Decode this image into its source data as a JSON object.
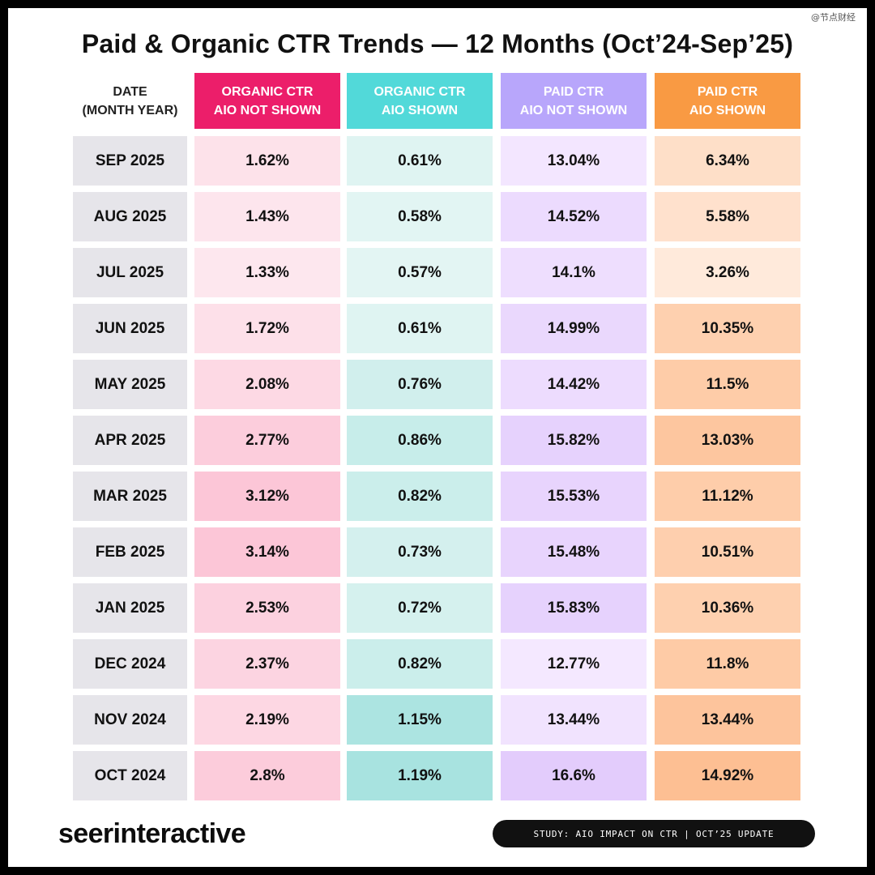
{
  "watermark": "@节点财经",
  "chart_data": {
    "type": "table",
    "title": "Paid & Organic CTR Trends — 12 Months (Oct’24-Sep’25)",
    "date_header": [
      "DATE",
      "(MONTH YEAR)"
    ],
    "columns": [
      {
        "key": "organic_not_shown",
        "header": [
          "ORGANIC CTR",
          "AIO NOT SHOWN"
        ],
        "header_color": "#ec1e6a",
        "cell_color": "#fde7ee",
        "cell_color_high": "#fcc6d7",
        "min": 1.33,
        "max": 3.14
      },
      {
        "key": "organic_shown",
        "header": [
          "ORGANIC CTR",
          "AIO SHOWN"
        ],
        "header_color": "#52d9d9",
        "cell_color": "#e3f5f3",
        "cell_color_high": "#a8e3e0",
        "min": 0.57,
        "max": 1.19
      },
      {
        "key": "paid_not_shown",
        "header": [
          "PAID CTR",
          "AIO NOT SHOWN"
        ],
        "header_color": "#b8a6fb",
        "cell_color": "#f4e8ff",
        "cell_color_high": "#e3ccfc",
        "min": 12.77,
        "max": 16.6
      },
      {
        "key": "paid_shown",
        "header": [
          "PAID CTR",
          "AIO SHOWN"
        ],
        "header_color": "#f99a43",
        "cell_color": "#ffeadb",
        "cell_color_high": "#fdbf93",
        "min": 3.26,
        "max": 14.92
      }
    ],
    "rows": [
      {
        "date": "SEP 2025",
        "values": [
          "1.62%",
          "0.61%",
          "13.04%",
          "6.34%"
        ],
        "numbers": [
          1.62,
          0.61,
          13.04,
          6.34
        ]
      },
      {
        "date": "AUG 2025",
        "values": [
          "1.43%",
          "0.58%",
          "14.52%",
          "5.58%"
        ],
        "numbers": [
          1.43,
          0.58,
          14.52,
          5.58
        ]
      },
      {
        "date": "JUL 2025",
        "values": [
          "1.33%",
          "0.57%",
          "14.1%",
          "3.26%"
        ],
        "numbers": [
          1.33,
          0.57,
          14.1,
          3.26
        ]
      },
      {
        "date": "JUN 2025",
        "values": [
          "1.72%",
          "0.61%",
          "14.99%",
          "10.35%"
        ],
        "numbers": [
          1.72,
          0.61,
          14.99,
          10.35
        ]
      },
      {
        "date": "MAY 2025",
        "values": [
          "2.08%",
          "0.76%",
          "14.42%",
          "11.5%"
        ],
        "numbers": [
          2.08,
          0.76,
          14.42,
          11.5
        ]
      },
      {
        "date": "APR 2025",
        "values": [
          "2.77%",
          "0.86%",
          "15.82%",
          "13.03%"
        ],
        "numbers": [
          2.77,
          0.86,
          15.82,
          13.03
        ]
      },
      {
        "date": "MAR 2025",
        "values": [
          "3.12%",
          "0.82%",
          "15.53%",
          "11.12%"
        ],
        "numbers": [
          3.12,
          0.82,
          15.53,
          11.12
        ]
      },
      {
        "date": "FEB 2025",
        "values": [
          "3.14%",
          "0.73%",
          "15.48%",
          "10.51%"
        ],
        "numbers": [
          3.14,
          0.73,
          15.48,
          10.51
        ]
      },
      {
        "date": "JAN 2025",
        "values": [
          "2.53%",
          "0.72%",
          "15.83%",
          "10.36%"
        ],
        "numbers": [
          2.53,
          0.72,
          15.83,
          10.36
        ]
      },
      {
        "date": "DEC 2024",
        "values": [
          "2.37%",
          "0.82%",
          "12.77%",
          "11.8%"
        ],
        "numbers": [
          2.37,
          0.82,
          12.77,
          11.8
        ]
      },
      {
        "date": "NOV 2024",
        "values": [
          "2.19%",
          "1.15%",
          "13.44%",
          "13.44%"
        ],
        "numbers": [
          2.19,
          1.15,
          13.44,
          13.44
        ]
      },
      {
        "date": "OCT 2024",
        "values": [
          "2.8%",
          "1.19%",
          "16.6%",
          "14.92%"
        ],
        "numbers": [
          2.8,
          1.19,
          16.6,
          14.92
        ]
      }
    ]
  },
  "footer": {
    "brand": "seerinteractive",
    "badge": "STUDY: AIO IMPACT ON CTR | OCT’25 UPDATE"
  }
}
